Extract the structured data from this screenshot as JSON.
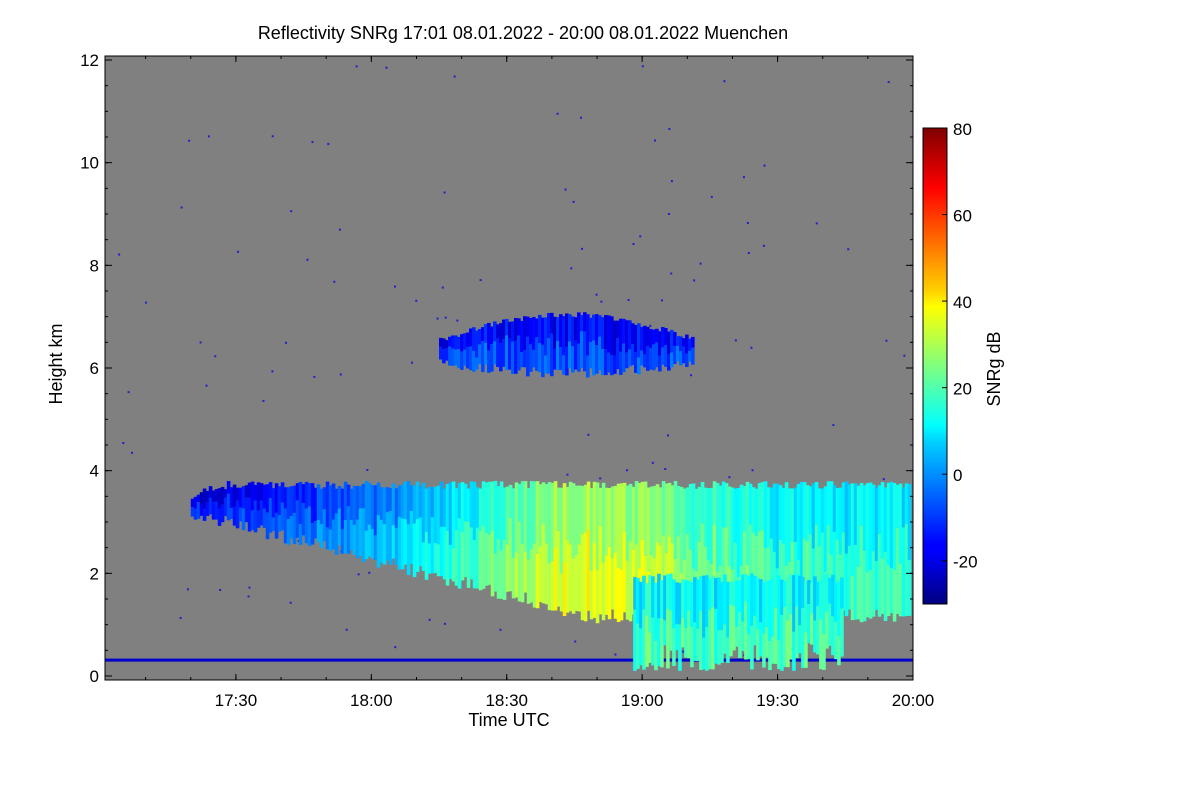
{
  "chart_data": {
    "type": "heatmap",
    "title": "Reflectivity SNRg   17:01 08.01.2022 - 20:00 08.01.2022 Muenchen",
    "xlabel": "Time UTC",
    "ylabel": "Height km",
    "colorbar_label": "SNRg dB",
    "x_range": [
      "17:01",
      "20:00"
    ],
    "ylim": [
      0,
      12
    ],
    "x_ticks": [
      "17:30",
      "18:00",
      "18:30",
      "19:00",
      "19:30",
      "20:00"
    ],
    "y_ticks": [
      0,
      2,
      4,
      6,
      8,
      10,
      12
    ],
    "colorbar_range": [
      -30,
      80
    ],
    "colorbar_ticks": [
      -20,
      0,
      20,
      40,
      60,
      80
    ],
    "colorscale": "jet",
    "background_color": "#808080",
    "features": [
      {
        "kind": "band",
        "time_start": "17:01",
        "time_end": "20:00",
        "height_km": 0.3,
        "snr_db": -22
      },
      {
        "kind": "cloud",
        "time_start": "18:15",
        "time_end": "19:12",
        "top_km": 7.1,
        "base_km": 6.0,
        "snr_db_typical": -8
      },
      {
        "kind": "cloud",
        "time_start": "17:20",
        "time_end": "20:00",
        "top_km": 3.8,
        "base_km": 1.5,
        "snr_db_typical": 10,
        "snr_db_max": 38
      },
      {
        "kind": "precipitation",
        "time_start": "18:58",
        "time_end": "19:45",
        "top_km": 2.0,
        "base_km": 0.1,
        "snr_db_typical": 12
      }
    ]
  }
}
